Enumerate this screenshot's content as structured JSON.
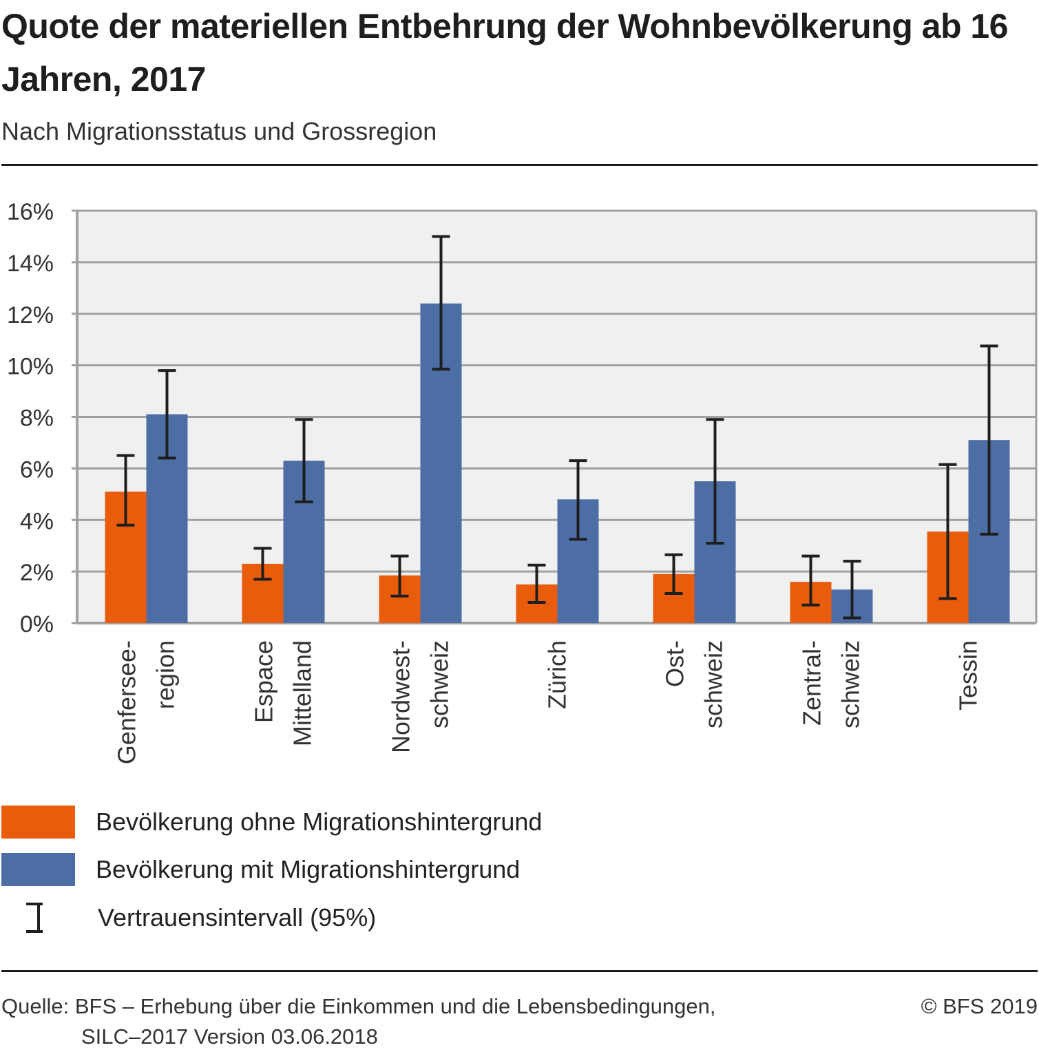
{
  "header": {
    "title": "Quote der materiellen Entbehrung der Wohnbevölkerung ab 16 Jahren, 2017",
    "subtitle": "Nach Migrationsstatus und Grossregion"
  },
  "colors": {
    "ohne": "#e95c0c",
    "mit": "#4d6ea5",
    "error_bar": "#1e1e1e",
    "plot_bg": "#f0f0f0",
    "grid": "#a0a0a0"
  },
  "chart_data": {
    "type": "bar",
    "title": "Quote der materiellen Entbehrung der Wohnbevölkerung ab 16 Jahren, 2017",
    "subtitle": "Nach Migrationsstatus und Grossregion",
    "xlabel": "",
    "ylabel": "",
    "ylim": [
      0,
      16
    ],
    "yticks": [
      0,
      2,
      4,
      6,
      8,
      10,
      12,
      14,
      16
    ],
    "ytick_labels": [
      "0%",
      "2%",
      "4%",
      "6%",
      "8%",
      "10%",
      "12%",
      "14%",
      "16%"
    ],
    "grid": true,
    "categories": [
      "Genfersee-region",
      "Espace Mittelland",
      "Nordwest-schweiz",
      "Zürich",
      "Ost-schweiz",
      "Zentral-schweiz",
      "Tessin"
    ],
    "category_label_lines": [
      [
        "Genfersee-",
        "region"
      ],
      [
        "Espace",
        "Mittelland"
      ],
      [
        "Nordwest-",
        "schweiz"
      ],
      [
        "Zürich"
      ],
      [
        "Ost-",
        "schweiz"
      ],
      [
        "Zentral-",
        "schweiz"
      ],
      [
        "Tessin"
      ]
    ],
    "series": [
      {
        "name": "Bevölkerung ohne Migrationshintergrund",
        "color": "#e95c0c",
        "values": [
          5.1,
          2.3,
          1.85,
          1.5,
          1.9,
          1.6,
          3.55
        ],
        "ci_low": [
          3.8,
          1.7,
          1.05,
          0.8,
          1.15,
          0.7,
          0.95
        ],
        "ci_high": [
          6.5,
          2.9,
          2.6,
          2.25,
          2.65,
          2.6,
          6.15
        ]
      },
      {
        "name": "Bevölkerung mit Migrationshintergrund",
        "color": "#4d6ea5",
        "values": [
          8.1,
          6.3,
          12.4,
          4.8,
          5.5,
          1.3,
          7.1
        ],
        "ci_low": [
          6.4,
          4.7,
          9.85,
          3.25,
          3.1,
          0.2,
          3.45
        ],
        "ci_high": [
          9.8,
          7.9,
          15.0,
          6.3,
          7.9,
          2.4,
          10.75
        ]
      }
    ],
    "legend": {
      "placement": "bottom-left",
      "entries": [
        "Bevölkerung ohne Migrationshintergrund",
        "Bevölkerung mit Migrationshintergrund",
        "Vertrauensintervall (95%)"
      ]
    }
  },
  "legend": {
    "ohne": "Bevölkerung ohne Migrationshintergrund",
    "mit": "Bevölkerung mit Migrationshintergrund",
    "ci": "Vertrauensintervall (95%)"
  },
  "footer": {
    "source_line1": "Quelle: BFS – Erhebung über die Einkommen und die Lebensbedingungen,",
    "source_line2": "SILC–2017 Version 03.06.2018",
    "copyright": "© BFS 2019"
  }
}
